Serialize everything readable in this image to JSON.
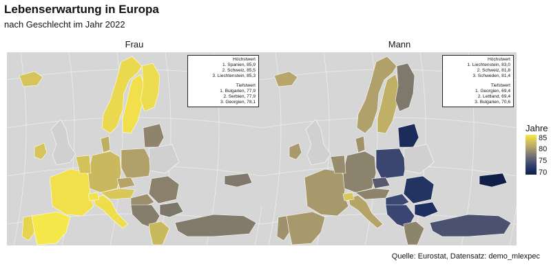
{
  "title": "Lebenserwartung in Europa",
  "subtitle": "nach Geschlecht im Jahr 2022",
  "caption": "Quelle: Eurostat, Datensatz: demo_mlexpec",
  "legend": {
    "title": "Jahre",
    "ticks": [
      "85",
      "80",
      "75",
      "70"
    ],
    "min": 69.4,
    "max": 85.9,
    "colors": [
      "#f5e84a",
      "#b8a66a",
      "#6e6e72",
      "#2c3a6e",
      "#0f1f48"
    ]
  },
  "colors": {
    "background": "#d6d6d6",
    "grid": "#e9e9e9",
    "border": "#ffffff"
  },
  "panels": [
    {
      "label": "Frau",
      "box": {
        "max_title": "Höchstwert",
        "max": [
          "1. Spanien, 85,9",
          "2. Schweiz, 85,5",
          "3. Liechtenstein, 85,3"
        ],
        "min_title": "Tiefstwert",
        "min": [
          "1. Bulgarien, 77,9",
          "2. Serbien, 77,9",
          "3. Georgien, 78,1"
        ]
      },
      "fills": {
        "iceland": "#d6c45a",
        "norway": "#ead84e",
        "sweden": "#f1e04b",
        "finland": "#ecdc4e",
        "ireland": "#d6c45a",
        "uk": "#d0d0d0",
        "france": "#f1e04b",
        "spain": "#f5e84a",
        "portugal": "#e6d44f",
        "italy": "#efde4c",
        "switzerland": "#f3e34a",
        "germany": "#c9b85e",
        "benelux": "#d3c25a",
        "denmark": "#c0ae62",
        "poland": "#b1a069",
        "czechia": "#b6a466",
        "austria": "#d8c759",
        "hungary": "#9b8e6a",
        "romania": "#8a806b",
        "bulgaria": "#7d766b",
        "balkans": "#867d6b",
        "greece": "#c8b85e",
        "turkey": "#827a6a",
        "baltics": "#8e836b",
        "belarus": "#d0d0d0",
        "georgia": "#7f786b"
      }
    },
    {
      "label": "Mann",
      "box": {
        "max_title": "Höchstwert",
        "max": [
          "1. Liechtenstein, 83,0",
          "2. Schweiz, 81,8",
          "3. Schweden, 81,4"
        ],
        "min_title": "Tiefstwert",
        "min": [
          "1. Georgien, 69,4",
          "2. Lettland, 69,4",
          "3. Bulgarien, 70,6"
        ]
      },
      "fills": {
        "iceland": "#b7a66b",
        "norway": "#b0a06a",
        "sweden": "#c0b065",
        "finland": "#7e796d",
        "ireland": "#a89a6a",
        "uk": "#d0d0d0",
        "france": "#a7996b",
        "spain": "#a7996b",
        "portugal": "#9e916b",
        "italy": "#b4a468",
        "switzerland": "#d6c65c",
        "germany": "#8c836d",
        "benelux": "#978c6c",
        "denmark": "#a09369",
        "poland": "#3b4670",
        "czechia": "#58596e",
        "austria": "#8e846c",
        "hungary": "#3d4872",
        "romania": "#233463",
        "bulgaria": "#1e2e5e",
        "balkans": "#3a4671",
        "greece": "#8d846c",
        "turkey": "#4a5270",
        "baltics": "#1a2b5c",
        "belarus": "#d0d0d0",
        "georgia": "#0f1f48"
      }
    }
  ]
}
